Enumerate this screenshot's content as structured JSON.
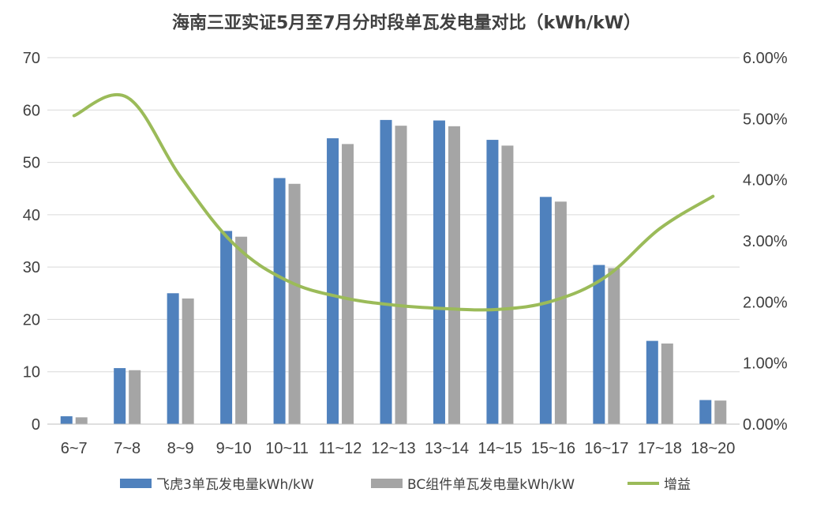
{
  "chart_data": {
    "type": "bar",
    "title": "海南三亚实证5月至7月分时段单瓦发电量对比（kWh/kW）",
    "categories": [
      "6~7",
      "7~8",
      "8~9",
      "9~10",
      "10~11",
      "11~12",
      "12~13",
      "13~14",
      "14~15",
      "15~16",
      "16~17",
      "17~18",
      "18~20"
    ],
    "series": [
      {
        "name": "飞虎3单瓦发电量kWh/kW",
        "type": "bar",
        "axis": "left",
        "color": "#4f81bd",
        "values": [
          1.5,
          10.7,
          25.0,
          36.9,
          47.0,
          54.6,
          58.1,
          58.0,
          54.3,
          43.4,
          30.4,
          15.9,
          4.6
        ]
      },
      {
        "name": "BC组件单瓦发电量kWh/kW",
        "type": "bar",
        "axis": "left",
        "color": "#a5a5a5",
        "values": [
          1.3,
          10.3,
          24.0,
          35.8,
          45.9,
          53.5,
          57.0,
          56.9,
          53.2,
          42.5,
          29.8,
          15.4,
          4.5
        ]
      },
      {
        "name": "增益",
        "type": "line",
        "axis": "right",
        "color": "#9bbb59",
        "values": [
          5.05,
          5.35,
          4.05,
          2.95,
          2.35,
          2.08,
          1.95,
          1.89,
          1.88,
          2.02,
          2.42,
          3.2,
          3.73
        ]
      }
    ],
    "y_left": {
      "min": 0,
      "max": 70,
      "ticks": [
        "0",
        "10",
        "20",
        "30",
        "40",
        "50",
        "60",
        "70"
      ]
    },
    "y_right": {
      "min": 0,
      "max": 6,
      "unit": "%",
      "ticks": [
        "0.00%",
        "1.00%",
        "2.00%",
        "3.00%",
        "4.00%",
        "5.00%",
        "6.00%"
      ]
    },
    "grid": true,
    "legend_position": "bottom"
  }
}
